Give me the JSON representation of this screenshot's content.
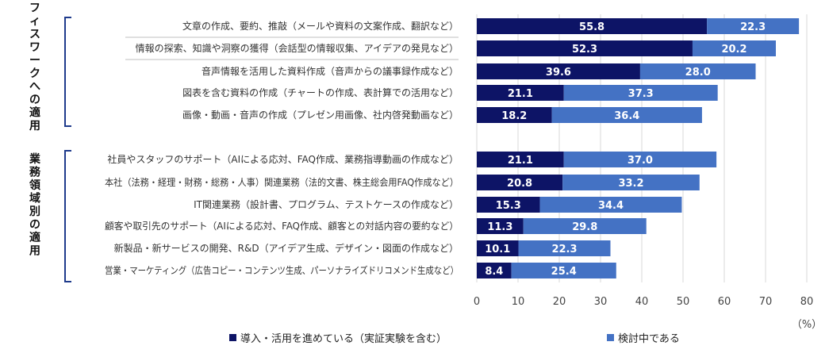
{
  "chart_data": {
    "type": "bar",
    "orientation": "horizontal",
    "stacked": true,
    "groups": [
      {
        "label": "オフィスワークへの適用",
        "start": 0,
        "end": 4
      },
      {
        "label": "業務領域別の適用",
        "start": 5,
        "end": 10
      }
    ],
    "categories": [
      "文章の作成、要約、推敲（メールや資料の文案作成、翻訳など）",
      "情報の探索、知識や洞察の獲得（会話型の情報収集、アイデアの発見など）",
      "音声情報を活用した資料作成（音声からの議事録作成など）",
      "図表を含む資料の作成（チャートの作成、表計算での活用など）",
      "画像・動画・音声の作成（プレゼン用画像、社内啓発動画など）",
      "社員やスタッフのサポート（AIによる応対、FAQ作成、業務指導動画の作成など）",
      "本社（法務・経理・財務・総務・人事）関連業務（法的文書、株主総会用FAQ作成など）",
      "IT関連業務（設計書、プログラム、テストケースの作成など）",
      "顧客や取引先のサポート（AIによる応対、FAQ作成、顧客との対話内容の要約など）",
      "新製品・新サービスの開発、R&D（アイデア生成、デザイン・図面の作成など）",
      "営業・マーケティング（広告コピー・コンテンツ生成、パーソナライズドリコメンド生成など）"
    ],
    "series": [
      {
        "name": "導入・活用を進めている（実証実験を含む）",
        "color": "#0d1466",
        "values": [
          55.8,
          52.3,
          39.6,
          21.1,
          18.2,
          21.1,
          20.8,
          15.3,
          11.3,
          10.1,
          8.4
        ]
      },
      {
        "name": "検討中である",
        "color": "#4472c4",
        "values": [
          22.3,
          20.2,
          28.0,
          37.3,
          36.4,
          37.0,
          33.2,
          34.4,
          29.8,
          22.3,
          25.4
        ]
      }
    ],
    "xlim": [
      0,
      80
    ],
    "xticks": [
      "0",
      "10",
      "20",
      "30",
      "40",
      "50",
      "60",
      "70",
      "80"
    ],
    "xlabel": "（%）",
    "grid": true,
    "legend_position": "bottom"
  }
}
